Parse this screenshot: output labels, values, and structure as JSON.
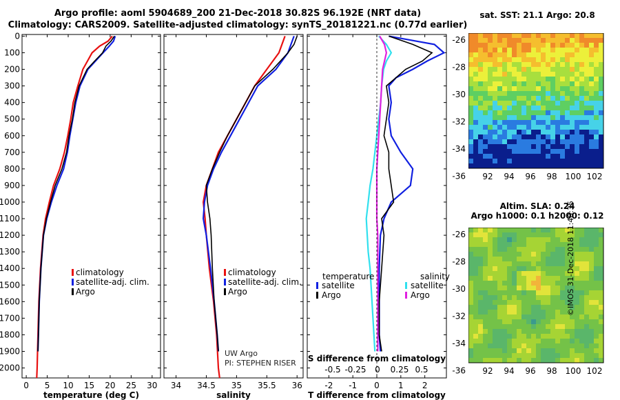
{
  "header": {
    "line1": "Argo profile: aoml 5904689_200 21-Dec-2018 30.82S 96.192E (NRT data)",
    "line2": "Climatology: CARS2009. Satellite-adjusted climatology: synTS_20181221.nc (0.77d earlier)"
  },
  "colors": {
    "climatology": "#e81010",
    "satellite": "#1020e0",
    "argo": "#000000",
    "temperature_diff": "#1020e0",
    "salinity_sat": "#30e0ee",
    "salinity_argo": "#e020e0"
  },
  "chart_data": [
    {
      "type": "line",
      "name": "temperature-profile",
      "xlabel": "temperature (deg C)",
      "ylabel": "depth",
      "xlim": [
        -1,
        32
      ],
      "ylim": [
        2060,
        -10
      ],
      "xticks": [
        0,
        5,
        10,
        15,
        20,
        25,
        30
      ],
      "yticks": [
        0,
        100,
        200,
        300,
        400,
        500,
        600,
        700,
        800,
        900,
        1000,
        1100,
        1200,
        1300,
        1400,
        1500,
        1600,
        1700,
        1800,
        1900,
        2000
      ],
      "legend": [
        "climatology",
        "satellite-adj. clim.",
        "Argo"
      ],
      "series": [
        {
          "name": "climatology",
          "depth": [
            0,
            30,
            60,
            100,
            150,
            200,
            300,
            400,
            500,
            600,
            700,
            800,
            900,
            1000,
            1100,
            1200,
            1400,
            1600,
            1800,
            2000,
            2060
          ],
          "values": [
            20.5,
            19.5,
            17.5,
            15.7,
            14.6,
            13.5,
            12.3,
            11.2,
            10.6,
            9.9,
            9.1,
            8.0,
            6.5,
            5.5,
            4.6,
            4.0,
            3.4,
            3.0,
            2.8,
            2.6,
            2.5
          ]
        },
        {
          "name": "satellite-adj. clim.",
          "depth": [
            0,
            30,
            60,
            100,
            150,
            200,
            300,
            400,
            500,
            600,
            700,
            800,
            900,
            1000,
            1100,
            1200,
            1400,
            1600,
            1800,
            1900
          ],
          "values": [
            21.2,
            20.8,
            19.8,
            18.3,
            16.5,
            14.7,
            12.8,
            11.8,
            11.1,
            10.4,
            9.8,
            8.9,
            7.3,
            6.0,
            4.9,
            4.1,
            3.5,
            3.1,
            2.9,
            2.8
          ]
        },
        {
          "name": "Argo",
          "depth": [
            0,
            30,
            60,
            100,
            150,
            200,
            300,
            400,
            500,
            600,
            700,
            800,
            900,
            1000,
            1100,
            1200,
            1400,
            1600,
            1800,
            1900
          ],
          "values": [
            21.0,
            20.2,
            19.0,
            18.2,
            16.3,
            14.5,
            12.6,
            11.6,
            11.0,
            10.2,
            9.6,
            8.5,
            6.9,
            5.8,
            4.8,
            4.1,
            3.5,
            3.1,
            2.9,
            2.8
          ]
        }
      ]
    },
    {
      "type": "line",
      "name": "salinity-profile",
      "xlabel": "salinity",
      "ylabel": "depth",
      "xlim": [
        33.8,
        36.1
      ],
      "ylim": [
        2060,
        -10
      ],
      "xticks": [
        34,
        34.5,
        35,
        35.5,
        36
      ],
      "xticklabels": [
        "34",
        "34.5",
        "35",
        "35.5",
        "36"
      ],
      "legend": [
        "climatology",
        "satellite-adj. clim.",
        "Argo"
      ],
      "annotations": [
        "UW Argo",
        "PI: STEPHEN RISER"
      ],
      "series": [
        {
          "name": "climatology",
          "depth": [
            0,
            50,
            100,
            200,
            300,
            400,
            500,
            600,
            700,
            800,
            900,
            1000,
            1100,
            1200,
            1400,
            1600,
            1800,
            2000,
            2060
          ],
          "values": [
            35.8,
            35.75,
            35.7,
            35.5,
            35.3,
            35.15,
            35.0,
            34.85,
            34.7,
            34.6,
            34.5,
            34.45,
            34.48,
            34.5,
            34.55,
            34.62,
            34.67,
            34.7,
            34.72
          ]
        },
        {
          "name": "satellite-adj. clim.",
          "depth": [
            0,
            50,
            100,
            200,
            300,
            400,
            500,
            600,
            700,
            800,
            900,
            1000,
            1100,
            1200,
            1400,
            1600,
            1800,
            1900
          ],
          "values": [
            35.95,
            35.9,
            35.85,
            35.65,
            35.35,
            35.2,
            35.05,
            34.9,
            34.75,
            34.62,
            34.52,
            34.47,
            34.45,
            34.5,
            34.57,
            34.63,
            34.68,
            34.7
          ]
        },
        {
          "name": "Argo",
          "depth": [
            0,
            50,
            100,
            200,
            300,
            400,
            500,
            600,
            700,
            800,
            900,
            1000,
            1100,
            1200,
            1400,
            1600,
            1800,
            1900
          ],
          "values": [
            36.0,
            35.95,
            35.85,
            35.6,
            35.3,
            35.15,
            35.0,
            34.85,
            34.72,
            34.6,
            34.5,
            34.52,
            34.56,
            34.58,
            34.6,
            34.63,
            34.68,
            34.7
          ]
        }
      ]
    },
    {
      "type": "line",
      "name": "difference-profile",
      "xlabel": "T difference from climatology",
      "xlabel_top": "S difference from climatology",
      "xlim": [
        -2.9,
        2.9
      ],
      "ylim": [
        2060,
        -10
      ],
      "xticks": [
        -2,
        -1,
        0,
        1,
        2
      ],
      "top_xticks": [
        -0.5,
        -0.25,
        0,
        0.25,
        0.5
      ],
      "top_xticklabels": [
        "-0.5",
        "-0.25",
        "0",
        "0.25",
        "0.5"
      ],
      "legend_titles": [
        "temperature",
        "salinity"
      ],
      "legend_left": [
        "satellite",
        "Argo"
      ],
      "legend_right": [
        "satellite",
        "Argo"
      ],
      "series": [
        {
          "name": "T satellite",
          "depth": [
            0,
            50,
            100,
            150,
            200,
            250,
            300,
            400,
            500,
            600,
            700,
            800,
            900,
            1000,
            1100,
            1200,
            1400,
            1600,
            1800,
            1900
          ],
          "values": [
            0.5,
            2.4,
            2.8,
            2.1,
            1.5,
            0.8,
            0.5,
            0.6,
            0.5,
            0.6,
            1.0,
            1.5,
            1.4,
            0.6,
            0.3,
            0.15,
            0.1,
            0.1,
            0.1,
            0.15
          ]
        },
        {
          "name": "T Argo",
          "depth": [
            0,
            50,
            100,
            150,
            200,
            250,
            300,
            400,
            500,
            600,
            700,
            800,
            900,
            1000,
            1100,
            1200,
            1400,
            1600,
            1800,
            1900
          ],
          "values": [
            0.5,
            1.5,
            2.3,
            1.9,
            1.2,
            0.8,
            0.4,
            0.5,
            0.4,
            0.3,
            0.5,
            0.5,
            0.6,
            0.7,
            0.2,
            0.3,
            0.2,
            0.1,
            0.1,
            0.2
          ]
        },
        {
          "name": "S satellite",
          "depth": [
            0,
            50,
            100,
            150,
            200,
            300,
            400,
            500,
            600,
            700,
            800,
            900,
            1000,
            1100,
            1200,
            1300,
            1400,
            1500,
            1600,
            1800,
            1900
          ],
          "values": [
            0.02,
            0.1,
            0.15,
            0.1,
            0.07,
            0.05,
            0.04,
            0.02,
            0.0,
            -0.02,
            -0.04,
            -0.07,
            -0.09,
            -0.11,
            -0.1,
            -0.09,
            -0.07,
            -0.06,
            -0.05,
            -0.03,
            -0.02
          ]
        },
        {
          "name": "S Argo",
          "depth": [
            0,
            50,
            100,
            200,
            300,
            400,
            500,
            600,
            700,
            800,
            900,
            1000,
            1100,
            1200,
            1400,
            1600,
            1800,
            1900
          ],
          "values": [
            0.03,
            0.08,
            0.1,
            0.06,
            0.05,
            0.04,
            0.03,
            0.02,
            0.01,
            0.0,
            0.0,
            0.0,
            0.0,
            0.01,
            0.01,
            0.01,
            0.01,
            0.01
          ]
        }
      ]
    },
    {
      "type": "heatmap",
      "name": "sst-map",
      "title": "sat. SST: 21.1 Argo: 20.8",
      "xticks": [
        "92",
        "94",
        "96",
        "98",
        "100",
        "102"
      ],
      "yticks": [
        "-26",
        "-28",
        "-30",
        "-32",
        "-34",
        "-36"
      ],
      "palette": [
        "#0a1e8c",
        "#2a7be0",
        "#46d2e8",
        "#5ecf62",
        "#a8df3e",
        "#ecf03a",
        "#f5be2e",
        "#f08a2a"
      ]
    },
    {
      "type": "heatmap",
      "name": "sla-map",
      "title_line1": "Altim. SLA: 0.24",
      "title_line2": "Argo h1000: 0.1 h2000: 0.12",
      "xticks": [
        "92",
        "94",
        "96",
        "98",
        "100",
        "102"
      ],
      "yticks": [
        "-26",
        "-28",
        "-30",
        "-32",
        "-34",
        "-36"
      ],
      "palette": [
        "#3a9a8e",
        "#5ab66a",
        "#74c248",
        "#a6d434",
        "#e2e43a",
        "#f2b43a"
      ]
    }
  ],
  "footer": {
    "credit": "©IMOS 31-Dec-2018 11:40:35"
  }
}
